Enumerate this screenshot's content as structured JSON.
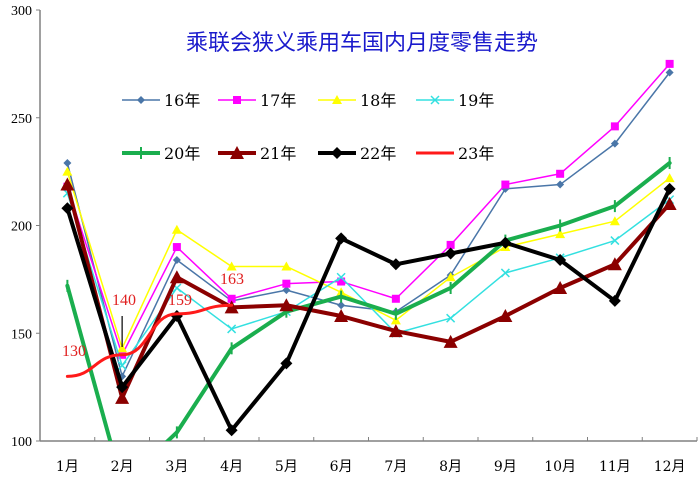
{
  "chart_data": {
    "type": "line",
    "title": "乘联会狭义乘用车国内月度零售走势",
    "xlabel": "",
    "ylabel": "",
    "ylim": [
      100,
      300
    ],
    "yticks": [
      100,
      150,
      200,
      250,
      300
    ],
    "grid": false,
    "legend_position": "top-inside, two rows",
    "categories": [
      "1月",
      "2月",
      "3月",
      "4月",
      "5月",
      "6月",
      "7月",
      "8月",
      "9月",
      "10月",
      "11月",
      "12月"
    ],
    "series": [
      {
        "name": "16年",
        "color": "#4a76a8",
        "marker": "diamond",
        "width": 1.5,
        "values": [
          229,
          130,
          184,
          165,
          170,
          163,
          160,
          177,
          217,
          219,
          238,
          271
        ]
      },
      {
        "name": "17年",
        "color": "#ff00ff",
        "marker": "square",
        "width": 1.5,
        "values": [
          218,
          140,
          190,
          166,
          173,
          174,
          166,
          191,
          219,
          224,
          246,
          275
        ]
      },
      {
        "name": "18年",
        "color": "#ffff00",
        "marker": "triangle",
        "width": 1.5,
        "values": [
          225,
          143,
          198,
          181,
          181,
          169,
          156,
          176,
          190,
          196,
          202,
          222
        ]
      },
      {
        "name": "19年",
        "color": "#33e0e0",
        "marker": "x",
        "width": 1.5,
        "values": [
          215,
          135,
          171,
          152,
          160,
          176,
          150,
          157,
          178,
          185,
          193,
          212
        ]
      },
      {
        "name": "20年",
        "color": "#1aae4e",
        "marker": "dash",
        "width": 4,
        "values": [
          172,
          80,
          104,
          143,
          160,
          167,
          159,
          171,
          193,
          200,
          209,
          229
        ]
      },
      {
        "name": "21年",
        "color": "#8b0000",
        "marker": "triangle",
        "width": 4,
        "values": [
          219,
          120,
          176,
          162,
          163,
          158,
          151,
          146,
          158,
          171,
          182,
          210
        ]
      },
      {
        "name": "22年",
        "color": "#000000",
        "marker": "diamond",
        "width": 4,
        "values": [
          208,
          125,
          158,
          105,
          136,
          194,
          182,
          187,
          192,
          184,
          165,
          217
        ]
      },
      {
        "name": "23年",
        "color": "#ff1a1a",
        "marker": "none",
        "width": 3,
        "values": [
          130,
          140,
          159,
          163
        ]
      }
    ],
    "annotations": [
      {
        "text": "130",
        "month_index": 0,
        "value": 130
      },
      {
        "text": "140",
        "month_index": 1,
        "value": 140
      },
      {
        "text": "159",
        "month_index": 2,
        "value": 159
      },
      {
        "text": "163",
        "month_index": 3,
        "value": 163
      }
    ]
  }
}
